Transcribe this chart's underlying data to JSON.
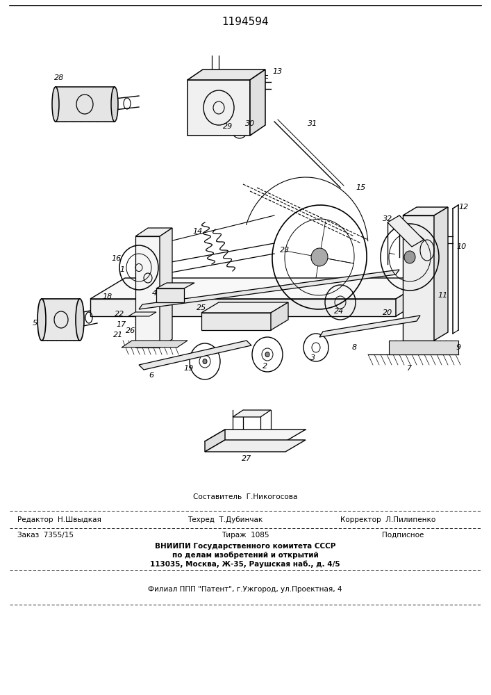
{
  "patent_number": "1194594",
  "bg_color": "#ffffff",
  "fig_width": 7.07,
  "fig_height": 10.0,
  "dpi": 100,
  "footer_texts": {
    "editor_label": "Редактор  Н.Швыдкая",
    "composer_label": "Составитель  Г.Никогосова",
    "techred_label": "Техред  Т.Дубинчак",
    "corrector_label": "Корректор  Л.Пилипенко",
    "order_label": "Заказ  7355/15",
    "circulation_label": "Тираж  1085",
    "subscription_label": "Подписное",
    "vniiipi_line1": "ВНИИПИ Государственного комитета СССР",
    "vniiipi_line2": "по делам изобретений и открытий",
    "vniiipi_line3": "113035, Москва, Ж-35, Раушская наб., д. 4/5",
    "filial_line": "Филиал ППП \"Патент\", г.Ужгород, ул.Проектная, 4"
  },
  "footer_fontsize": 7.5
}
